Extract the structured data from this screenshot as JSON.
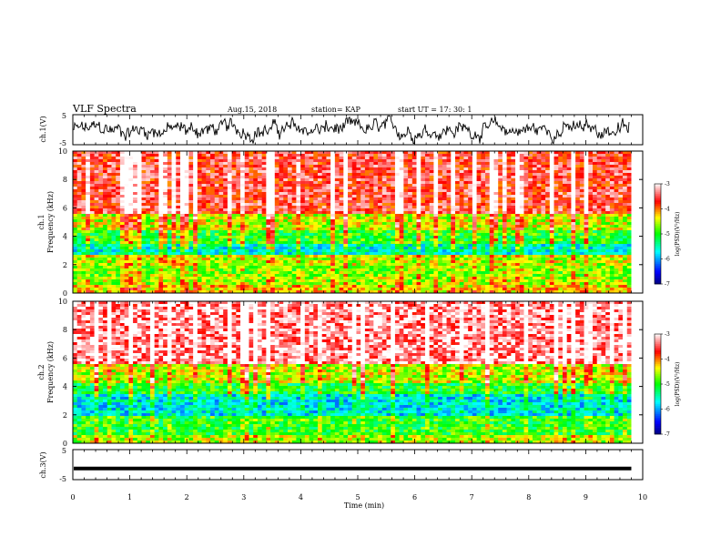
{
  "header": {
    "title": "VLF Spectra",
    "date": "Aug.15, 2018",
    "station": "station= KAP",
    "start": "start  UT  =   17: 30: 1"
  },
  "colorbar": {
    "label": "log(PSD)(V²/Hz)",
    "ticks": [
      "-3",
      "-4",
      "-5",
      "-6",
      "-7"
    ],
    "colors": [
      "#000080",
      "#0000ff",
      "#00ffff",
      "#00ff00",
      "#ffff00",
      "#ff0000",
      "#ffffff"
    ]
  },
  "chart_data": [
    {
      "type": "line",
      "panel": "ch1-waveform",
      "ylabel": "ch.1(V)",
      "ylim": [
        -5,
        5
      ],
      "yticks": [
        "5",
        "-5"
      ],
      "xlim": [
        0,
        10
      ]
    },
    {
      "type": "heatmap",
      "panel": "ch1-spectrogram",
      "ylabel": "ch.1",
      "ylabel2": "Frequency (kHz)",
      "ylim": [
        0,
        10
      ],
      "yticks": [
        "0",
        "2",
        "4",
        "6",
        "8",
        "10"
      ],
      "xlim": [
        0,
        10
      ],
      "x_end": 9.8,
      "zlim": [
        -7,
        -3
      ],
      "bands": [
        {
          "f": [
            0,
            0.6
          ],
          "z": -4.3
        },
        {
          "f": [
            0.6,
            1.2
          ],
          "z": -4.6
        },
        {
          "f": [
            1.2,
            2.0
          ],
          "z": -4.7
        },
        {
          "f": [
            2.0,
            2.6
          ],
          "z": -4.5
        },
        {
          "f": [
            2.6,
            3.5
          ],
          "z": -5.6
        },
        {
          "f": [
            3.5,
            4.5
          ],
          "z": -5.0
        },
        {
          "f": [
            4.5,
            5.5
          ],
          "z": -4.5
        },
        {
          "f": [
            5.5,
            10.0
          ],
          "z": -3.6
        }
      ]
    },
    {
      "type": "heatmap",
      "panel": "ch2-spectrogram",
      "ylabel": "ch.2",
      "ylabel2": "Frequency (kHz)",
      "ylim": [
        0,
        10
      ],
      "yticks": [
        "0",
        "2",
        "4",
        "6",
        "8",
        "10"
      ],
      "xlim": [
        0,
        10
      ],
      "x_end": 9.8,
      "zlim": [
        -7,
        -3
      ],
      "bands": [
        {
          "f": [
            0,
            0.6
          ],
          "z": -4.6
        },
        {
          "f": [
            0.6,
            2.0
          ],
          "z": -5.0
        },
        {
          "f": [
            2.0,
            3.4
          ],
          "z": -5.7
        },
        {
          "f": [
            3.4,
            4.3
          ],
          "z": -5.1
        },
        {
          "f": [
            4.3,
            5.5
          ],
          "z": -4.5
        },
        {
          "f": [
            5.5,
            10.0
          ],
          "z": -3.3
        }
      ]
    },
    {
      "type": "line",
      "panel": "ch3-waveform",
      "ylabel": "ch.3(V)",
      "ylim": [
        -5,
        5
      ],
      "yticks": [
        "5",
        "-5"
      ],
      "xlim": [
        0,
        10
      ],
      "constant_value": -1.3,
      "xlabel": "Time (min)",
      "xticks": [
        "0",
        "1",
        "2",
        "3",
        "4",
        "5",
        "6",
        "7",
        "8",
        "9",
        "10"
      ]
    }
  ]
}
